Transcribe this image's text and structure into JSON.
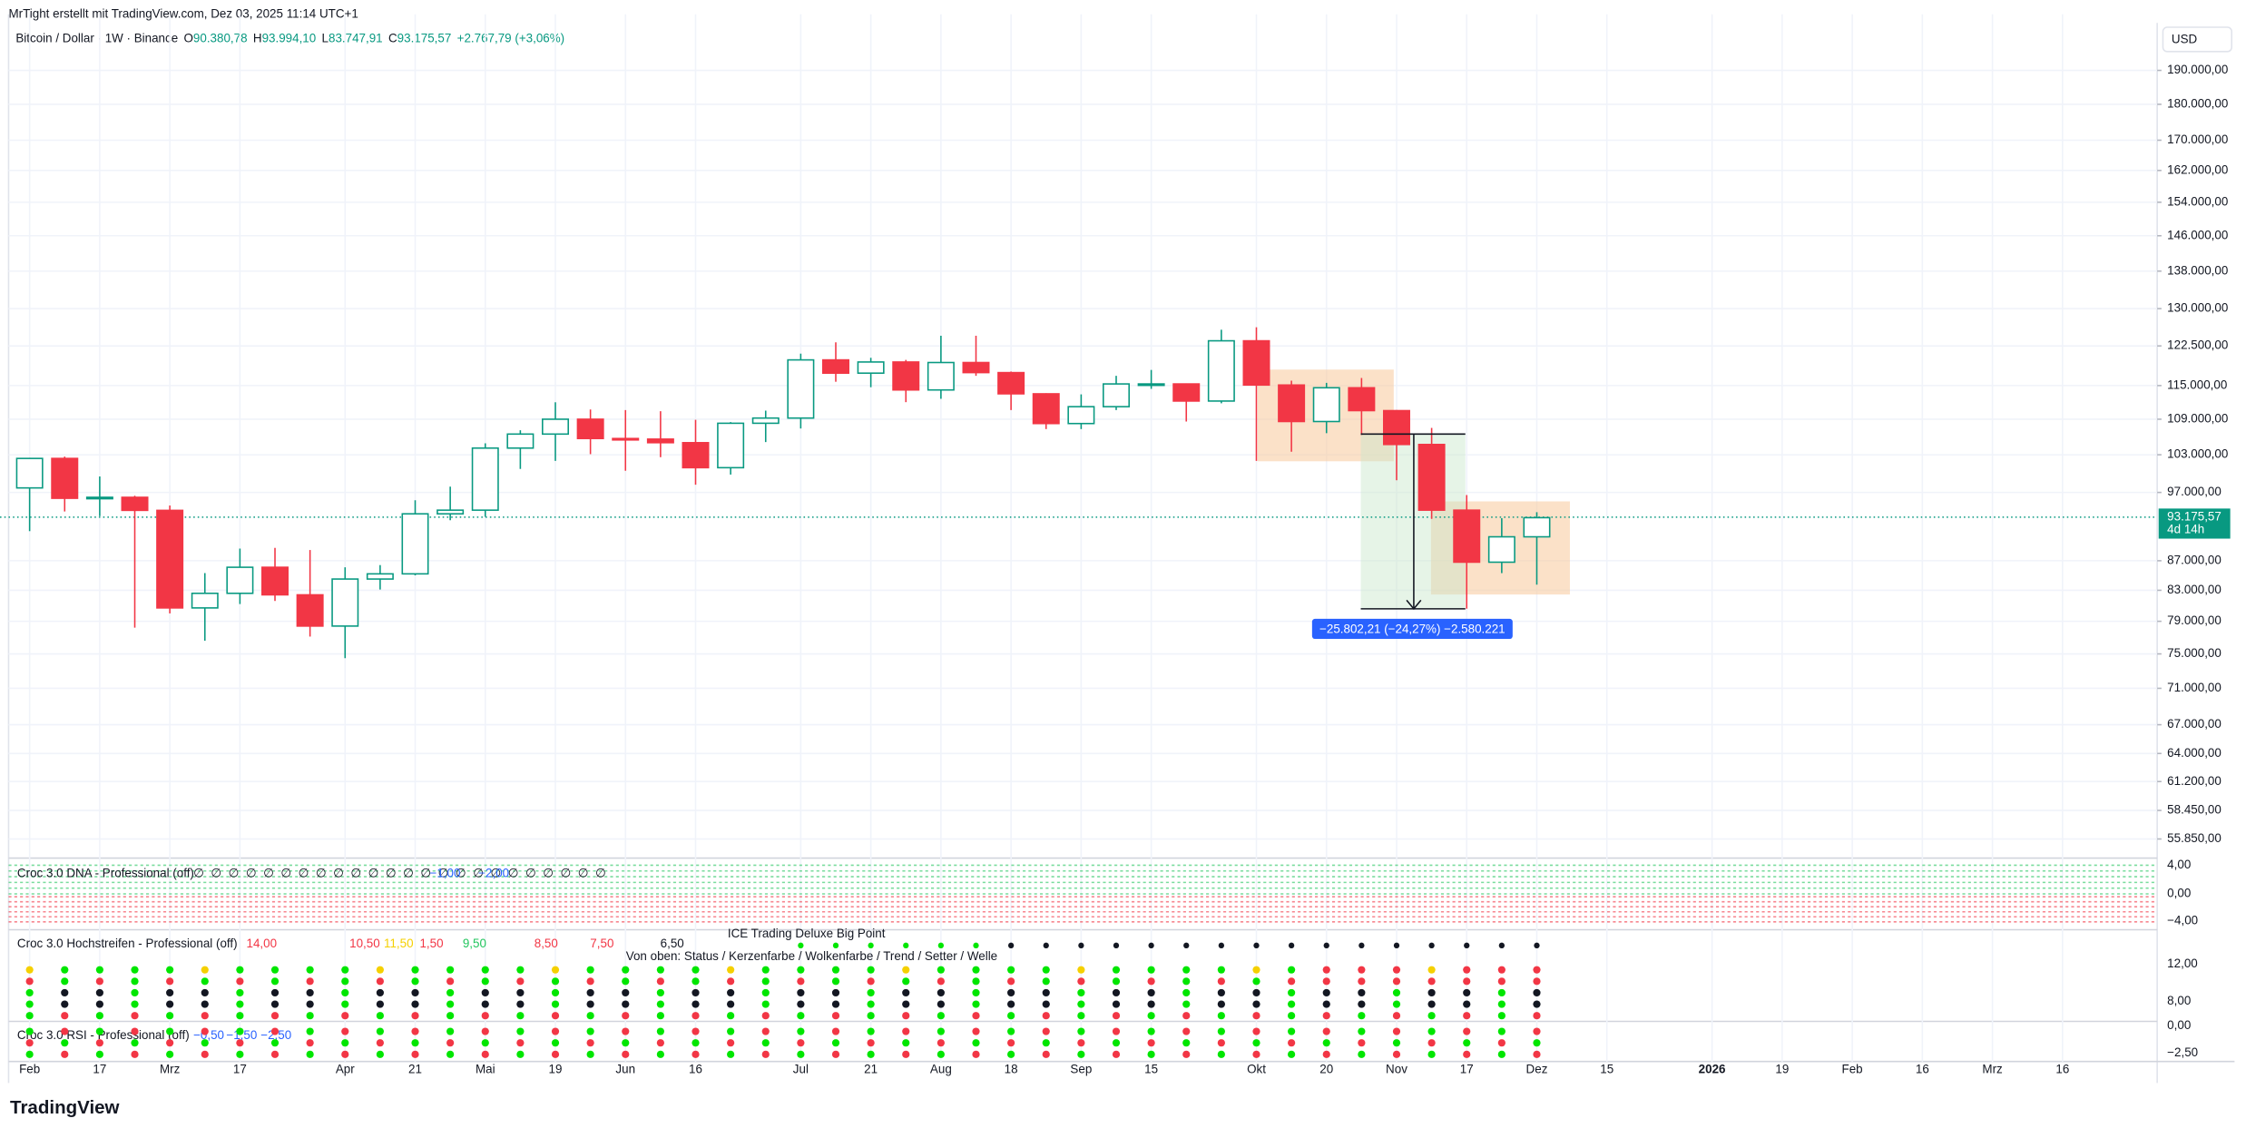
{
  "header": {
    "creator": "MrTight erstellt mit TradingView.com, Dez 03, 2025 11:14 UTC+1"
  },
  "currency": "USD",
  "legend": {
    "open_label": "O",
    "open": "90.380,78",
    "high_label": "H",
    "high": "93.994,10",
    "low_label": "L",
    "low": "83.747,91",
    "close_label": "C",
    "close": "93.175,57",
    "change": "+2.767,79 (+3,06%)"
  },
  "last_price": {
    "label": "93.175,57",
    "countdown": "4d 14h"
  },
  "measure_label": "−25.802,21 (−24,27%) −2.580.221",
  "chart_data": {
    "type": "candlestick",
    "title": "Bitcoin / Dollar · 1W · Binance",
    "log_scale": true,
    "up_color": "#089981",
    "down_color": "#f23645",
    "open": [
      97700,
      102400,
      96100,
      96250,
      94270,
      80700,
      82600,
      86100,
      82400,
      78400,
      84500,
      85200,
      93750,
      94300,
      104100,
      106450,
      109000,
      105700,
      105600,
      105000,
      100900,
      108300,
      109200,
      119800,
      117300,
      119400,
      114200,
      119300,
      117400,
      113500,
      108250,
      111200,
      115300,
      115300,
      112200,
      123500,
      115100,
      108600,
      114600,
      110500,
      104700,
      94300,
      86800,
      90380
    ],
    "high": [
      102500,
      102700,
      99500,
      96500,
      95000,
      85300,
      88700,
      88800,
      88500,
      86100,
      86400,
      95800,
      97900,
      104900,
      107100,
      111980,
      110700,
      110600,
      110400,
      108900,
      108500,
      110500,
      121000,
      123200,
      120200,
      119800,
      124500,
      124500,
      117600,
      113600,
      113400,
      116800,
      117900,
      115400,
      125700,
      126200,
      115900,
      115500,
      116400,
      110600,
      107500,
      96600,
      93100,
      93994
    ],
    "low": [
      91200,
      94100,
      93400,
      78200,
      80000,
      76600,
      81200,
      81600,
      77100,
      74500,
      83100,
      85000,
      92800,
      93300,
      100700,
      102000,
      103100,
      100400,
      102600,
      98200,
      99800,
      105100,
      107400,
      115700,
      114700,
      112000,
      112600,
      116800,
      110600,
      107300,
      107300,
      110600,
      114400,
      108600,
      111800,
      102000,
      103500,
      106600,
      106300,
      98900,
      93000,
      80600,
      85300,
      83748
    ],
    "close": [
      102400,
      96100,
      96250,
      94270,
      80700,
      82600,
      86100,
      82400,
      78400,
      84500,
      85200,
      93750,
      94300,
      104100,
      106450,
      109000,
      105700,
      105600,
      105000,
      100900,
      108300,
      109200,
      119800,
      117300,
      119400,
      114200,
      119300,
      117400,
      113500,
      108250,
      111200,
      115300,
      115300,
      112200,
      123500,
      115100,
      108600,
      114600,
      110500,
      104700,
      94300,
      86800,
      90380,
      93176
    ],
    "ylim": [
      54300,
      206800
    ],
    "yticks": [
      {
        "value": 190000,
        "label": "190.000,00"
      },
      {
        "value": 180000,
        "label": "180.000,00"
      },
      {
        "value": 170000,
        "label": "170.000,00"
      },
      {
        "value": 162000,
        "label": "162.000,00"
      },
      {
        "value": 154000,
        "label": "154.000,00"
      },
      {
        "value": 146000,
        "label": "146.000,00"
      },
      {
        "value": 138000,
        "label": "138.000,00"
      },
      {
        "value": 130000,
        "label": "130.000,00"
      },
      {
        "value": 122500,
        "label": "122.500,00"
      },
      {
        "value": 115000,
        "label": "115.000,00"
      },
      {
        "value": 109000,
        "label": "109.000,00"
      },
      {
        "value": 103000,
        "label": "103.000,00"
      },
      {
        "value": 97000,
        "label": "97.000,00"
      },
      {
        "value": 87000,
        "label": "87.000,00"
      },
      {
        "value": 83000,
        "label": "83.000,00"
      },
      {
        "value": 79000,
        "label": "79.000,00"
      },
      {
        "value": 75000,
        "label": "75.000,00"
      },
      {
        "value": 71000,
        "label": "71.000,00"
      },
      {
        "value": 67000,
        "label": "67.000,00"
      },
      {
        "value": 64000,
        "label": "64.000,00"
      },
      {
        "value": 61200,
        "label": "61.200,00"
      },
      {
        "value": 58450,
        "label": "58.450,00"
      },
      {
        "value": 55850,
        "label": "55.850,00"
      }
    ],
    "xlim": [
      -0.6,
      60.7
    ],
    "xticks": [
      {
        "value": 0,
        "label": "Feb"
      },
      {
        "value": 2,
        "label": "17"
      },
      {
        "value": 4,
        "label": "Mrz"
      },
      {
        "value": 6,
        "label": "17"
      },
      {
        "value": 9,
        "label": "Apr"
      },
      {
        "value": 11,
        "label": "21"
      },
      {
        "value": 13,
        "label": "Mai"
      },
      {
        "value": 15,
        "label": "19"
      },
      {
        "value": 17,
        "label": "Jun"
      },
      {
        "value": 19,
        "label": "16"
      },
      {
        "value": 22,
        "label": "Jul"
      },
      {
        "value": 24,
        "label": "21"
      },
      {
        "value": 26,
        "label": "Aug"
      },
      {
        "value": 28,
        "label": "18"
      },
      {
        "value": 30,
        "label": "Sep"
      },
      {
        "value": 32,
        "label": "15"
      },
      {
        "value": 35,
        "label": "Okt"
      },
      {
        "value": 37,
        "label": "20"
      },
      {
        "value": 39,
        "label": "Nov"
      },
      {
        "value": 41,
        "label": "17"
      },
      {
        "value": 43,
        "label": "Dez"
      },
      {
        "value": 45,
        "label": "15"
      },
      {
        "value": 48,
        "label": "2026"
      },
      {
        "value": 50,
        "label": "19"
      },
      {
        "value": 52,
        "label": "Feb"
      },
      {
        "value": 54,
        "label": "16"
      },
      {
        "value": 56,
        "label": "Mrz"
      },
      {
        "value": 58,
        "label": "16"
      }
    ],
    "grid": true
  },
  "indicators": {
    "dna": {
      "title": "Croc 3.0 DNA - Professional (off)",
      "na": "∅",
      "values": [
        "−1,00",
        "−2,00"
      ],
      "axis": [
        "4,00",
        "0,00",
        "−4,00"
      ]
    },
    "hoch": {
      "title": "Croc 3.0 Hochstreifen - Professional (off)",
      "values": [
        {
          "label": "14,00",
          "color": "#f23645"
        },
        {
          "label": "10,50",
          "color": "#f23645"
        },
        {
          "label": "11,50",
          "color": "#f5d000"
        },
        {
          "label": "1,50",
          "color": "#f23645"
        },
        {
          "label": "9,50",
          "color": "#22c55e"
        },
        {
          "label": "8,50",
          "color": "#f23645"
        },
        {
          "label": "7,50",
          "color": "#f23645"
        },
        {
          "label": "6,50",
          "color": "#131722"
        }
      ],
      "axis": [
        "12,00",
        "8,00"
      ]
    },
    "ice": {
      "title": "ICE Trading Deluxe Big Point",
      "subtitle": "Von oben: Status / Kerzenfarbe / Wolkenfarbe / Trend / Setter / Welle"
    },
    "rsi": {
      "title": "Croc 3.0 RSI - Professional (off)",
      "values": [
        "−0,50",
        "−1,50",
        "−2,50"
      ],
      "axis": [
        "0,00",
        "−2,50"
      ]
    }
  },
  "brand": "TradingView"
}
